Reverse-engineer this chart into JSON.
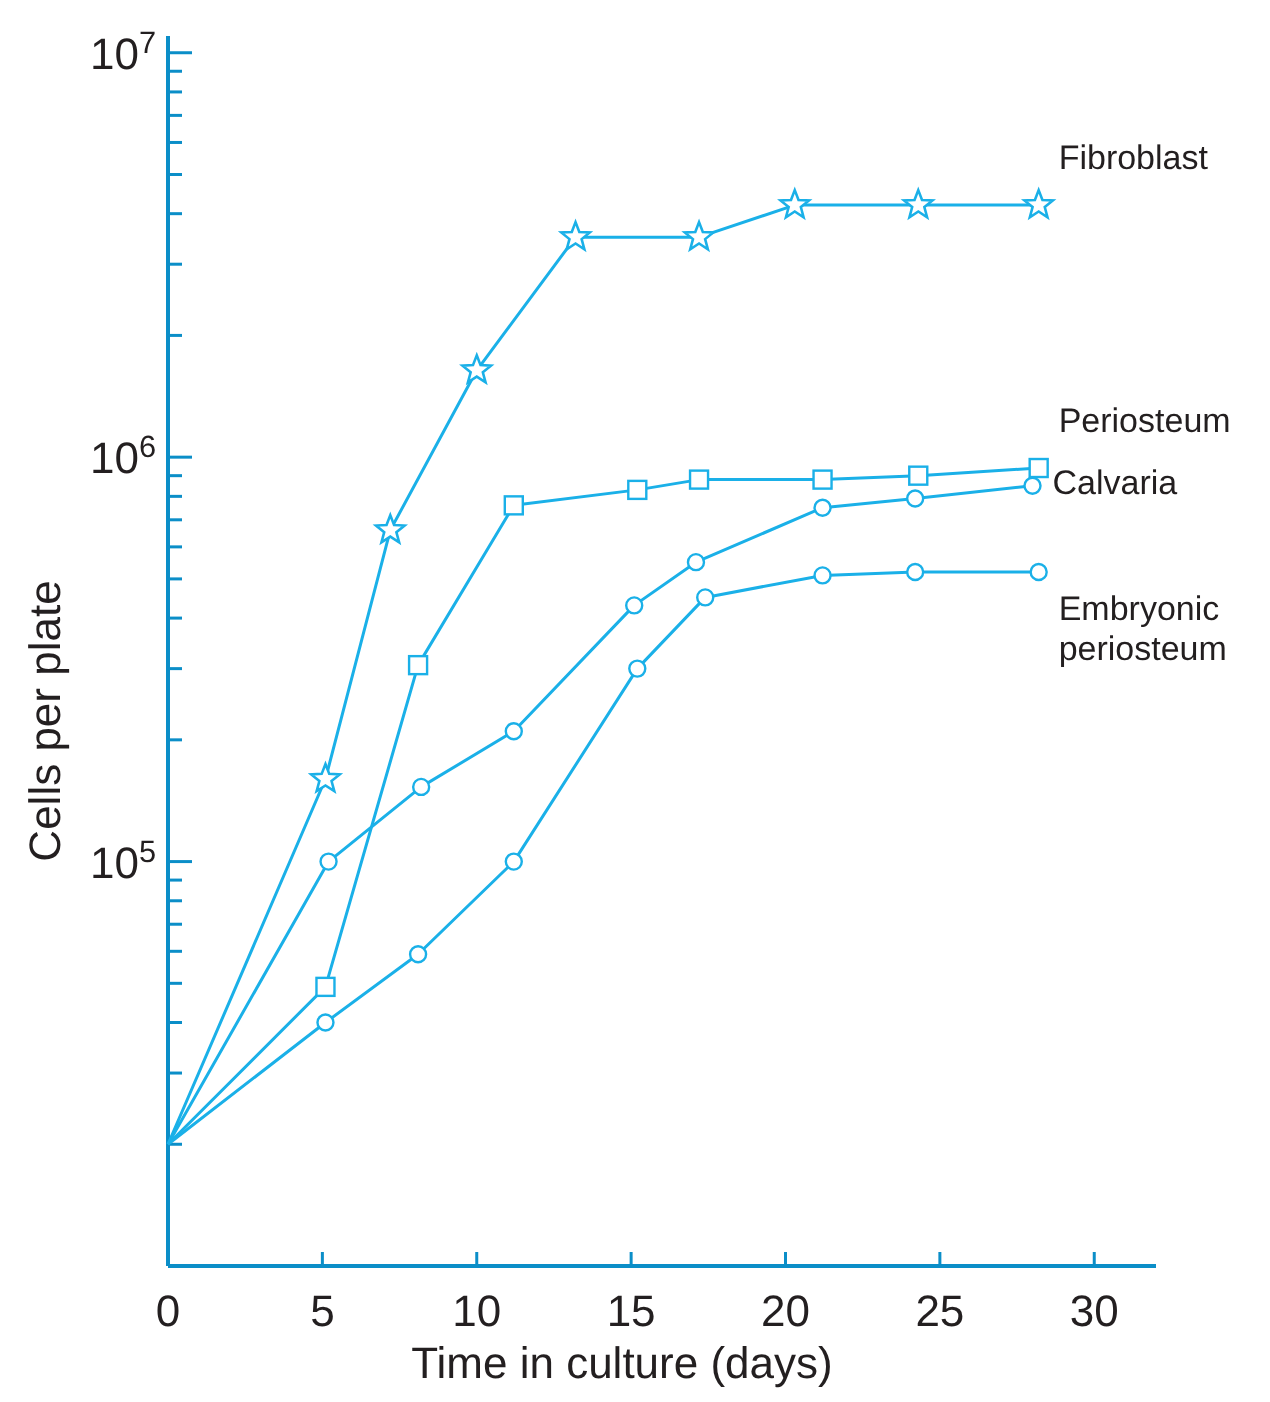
{
  "chart_data": {
    "type": "line",
    "xlabel": "Time in culture (days)",
    "ylabel": "Cells per plate",
    "log": "y",
    "xlim": [
      0,
      32
    ],
    "xticks": [
      0,
      5,
      10,
      15,
      20,
      25,
      30
    ],
    "ylim": [
      10000,
      11000000
    ],
    "yticks": [
      {
        "value": 20000,
        "label": null
      },
      {
        "value": 30000,
        "label": null
      },
      {
        "value": 40000,
        "label": null
      },
      {
        "value": 50000,
        "label": null
      },
      {
        "value": 60000,
        "label": null
      },
      {
        "value": 70000,
        "label": null
      },
      {
        "value": 80000,
        "label": null
      },
      {
        "value": 90000,
        "label": null
      },
      {
        "value": 100000,
        "label": "10$^{5}$"
      },
      {
        "value": 200000,
        "label": null
      },
      {
        "value": 300000,
        "label": null
      },
      {
        "value": 400000,
        "label": null
      },
      {
        "value": 500000,
        "label": null
      },
      {
        "value": 600000,
        "label": null
      },
      {
        "value": 700000,
        "label": null
      },
      {
        "value": 800000,
        "label": null
      },
      {
        "value": 900000,
        "label": null
      },
      {
        "value": 1000000,
        "label": "10$^{6}$"
      },
      {
        "value": 2000000,
        "label": null
      },
      {
        "value": 3000000,
        "label": null
      },
      {
        "value": 4000000,
        "label": null
      },
      {
        "value": 5000000,
        "label": null
      },
      {
        "value": 6000000,
        "label": null
      },
      {
        "value": 7000000,
        "label": null
      },
      {
        "value": 8000000,
        "label": null
      },
      {
        "value": 9000000,
        "label": null
      },
      {
        "value": 10000000,
        "label": "10$^{7}$"
      }
    ],
    "grid": false,
    "legend": false,
    "line_style": "solid",
    "series": [
      {
        "name": "Fibroblast",
        "color": "#1ab0e8",
        "marker": "star",
        "x": [
          0,
          5.1,
          7.2,
          10,
          13.2,
          17.2,
          20.3,
          24.3,
          28.2
        ],
        "values": [
          20000,
          160000,
          660000,
          1640000,
          3500000,
          3500000,
          4200000,
          4200000,
          4200000
        ]
      },
      {
        "name": "Periosteum",
        "color": "#1ab0e8",
        "marker": "square",
        "x": [
          0,
          5.1,
          8.1,
          11.2,
          15.2,
          17.2,
          21.2,
          24.3,
          28.2
        ],
        "values": [
          20000,
          49000,
          306000,
          760000,
          830000,
          880000,
          880000,
          900000,
          940000
        ]
      },
      {
        "name": "Calvaria",
        "color": "#1ab0e8",
        "marker": "circle",
        "x": [
          0,
          5.2,
          8.2,
          11.2,
          15.1,
          17.1,
          21.2,
          24.2,
          28
        ],
        "values": [
          20000,
          100000,
          153000,
          210000,
          430000,
          550000,
          750000,
          790000,
          850000
        ]
      },
      {
        "name": "Embryonic periosteum",
        "color": "#1ab0e8",
        "marker": "circle",
        "x": [
          0,
          5.1,
          8.1,
          11.2,
          15.2,
          17.4,
          21.2,
          24.2,
          28.2
        ],
        "values": [
          20000,
          40000,
          59000,
          100000,
          300000,
          450000,
          510000,
          520000,
          520000
        ]
      }
    ]
  }
}
